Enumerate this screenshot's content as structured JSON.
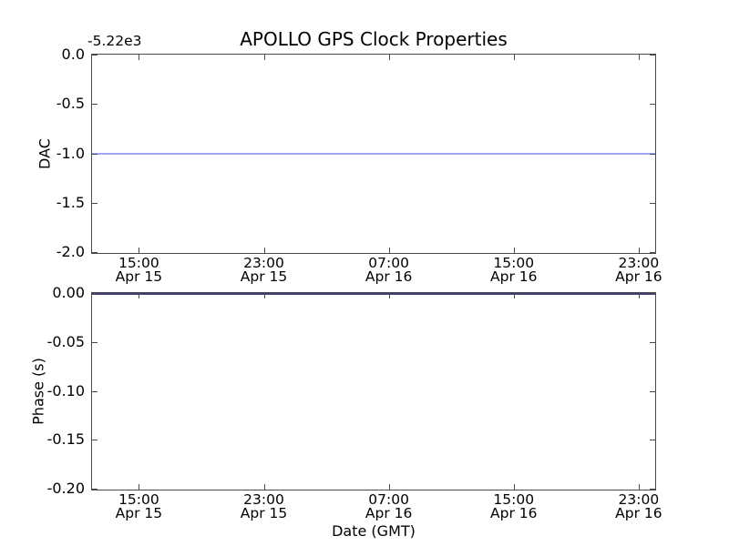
{
  "figure": {
    "background": "#ffffff",
    "frame_color": "#4a4a4a",
    "text_color": "#000000"
  },
  "chart_data": [
    {
      "type": "line",
      "name": "dac-subplot",
      "title": "APOLLO GPS Clock Properties",
      "ylabel": "DAC",
      "y_offset_text": "-5.22e3",
      "ylim": [
        -2.0,
        0.0
      ],
      "yticks": [
        0.0,
        -0.5,
        -1.0,
        -1.5,
        -2.0
      ],
      "ytick_labels": [
        "0.0",
        "-0.5",
        "-1.0",
        "-1.5",
        "-2.0"
      ],
      "xlim_hours": [
        0,
        36
      ],
      "x_ticks": [
        {
          "hours": 3,
          "time": "15:00",
          "date": "Apr 15"
        },
        {
          "hours": 11,
          "time": "23:00",
          "date": "Apr 15"
        },
        {
          "hours": 19,
          "time": "07:00",
          "date": "Apr 16"
        },
        {
          "hours": 27,
          "time": "15:00",
          "date": "Apr 16"
        },
        {
          "hours": 35,
          "time": "23:00",
          "date": "Apr 16"
        }
      ],
      "grid": false,
      "legend": null,
      "series": [
        {
          "name": "dac",
          "shape": "hline",
          "value": -1.0,
          "color": "#9fa5f2"
        }
      ]
    },
    {
      "type": "line",
      "name": "phase-subplot",
      "ylabel": "Phase (s)",
      "xlabel": "Date (GMT)",
      "ylim": [
        -0.2,
        0.0
      ],
      "yticks": [
        0.0,
        -0.05,
        -0.1,
        -0.15,
        -0.2
      ],
      "ytick_labels": [
        "0.00",
        "-0.05",
        "-0.10",
        "-0.15",
        "-0.20"
      ],
      "xlim_hours": [
        0,
        36
      ],
      "x_ticks": [
        {
          "hours": 3,
          "time": "15:00",
          "date": "Apr 15"
        },
        {
          "hours": 11,
          "time": "23:00",
          "date": "Apr 15"
        },
        {
          "hours": 19,
          "time": "07:00",
          "date": "Apr 16"
        },
        {
          "hours": 27,
          "time": "15:00",
          "date": "Apr 16"
        },
        {
          "hours": 35,
          "time": "23:00",
          "date": "Apr 16"
        }
      ],
      "grid": false,
      "legend": null,
      "series": [
        {
          "name": "phase",
          "shape": "hline",
          "value": 0.0,
          "color": "#3d3d78"
        }
      ]
    }
  ]
}
